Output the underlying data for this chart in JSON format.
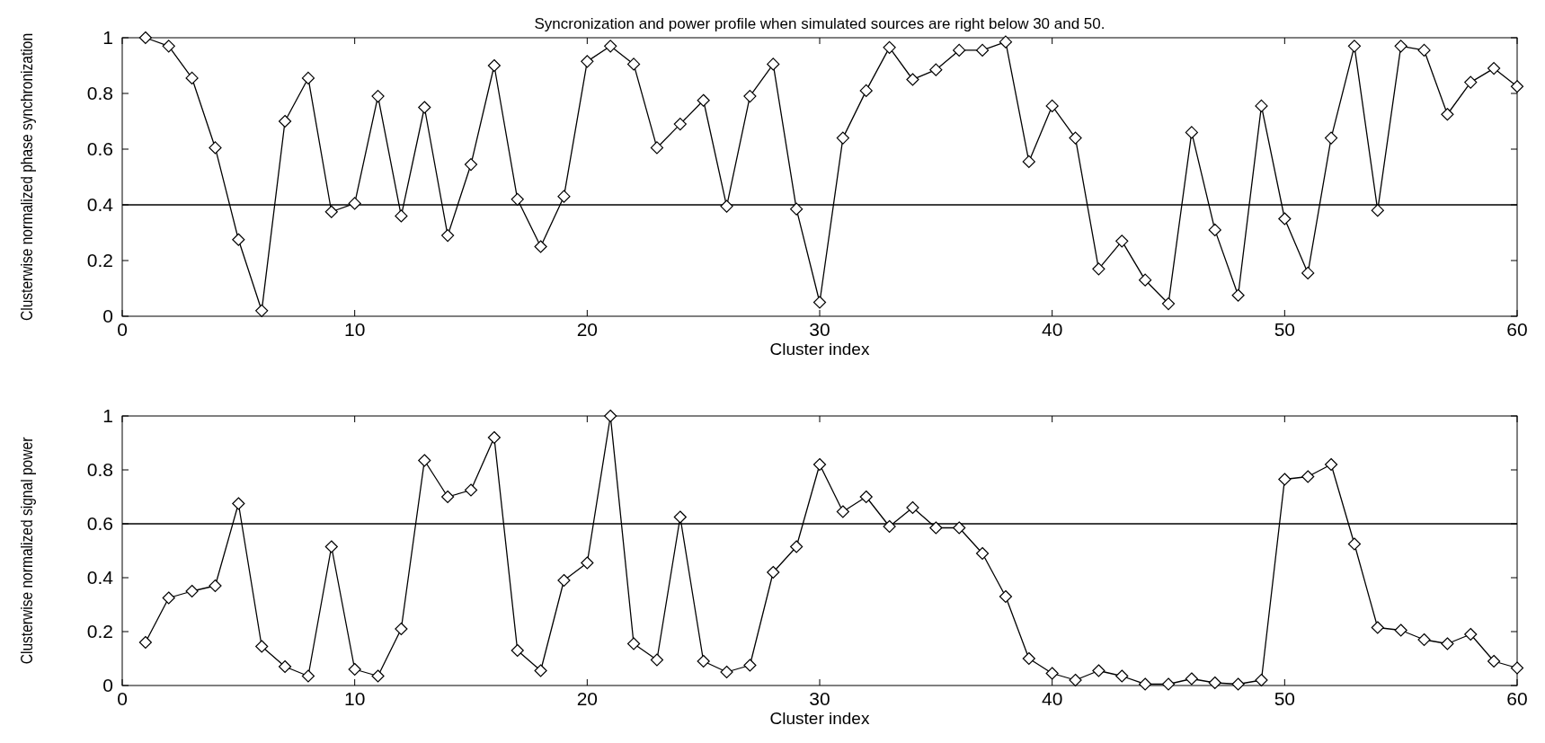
{
  "chart_data": [
    {
      "type": "line",
      "title": "Syncronization and power profile when simulated sources are right below 30 and 50.",
      "xlabel": "Cluster index",
      "ylabel": "Clusterwise normalized phase synchronization",
      "x": [
        1,
        2,
        3,
        4,
        5,
        6,
        7,
        8,
        9,
        10,
        11,
        12,
        13,
        14,
        15,
        16,
        17,
        18,
        19,
        20,
        21,
        22,
        23,
        24,
        25,
        26,
        27,
        28,
        29,
        30,
        31,
        32,
        33,
        34,
        35,
        36,
        37,
        38,
        39,
        40,
        41,
        42,
        43,
        44,
        45,
        46,
        47,
        48,
        49,
        50,
        51,
        52,
        53,
        54,
        55,
        56,
        57,
        58,
        59,
        60
      ],
      "series": [
        {
          "color": "#000000",
          "values": [
            1.0,
            0.97,
            0.855,
            0.605,
            0.275,
            0.02,
            0.7,
            0.855,
            0.375,
            0.405,
            0.79,
            0.36,
            0.75,
            0.29,
            0.545,
            0.9,
            0.42,
            0.25,
            0.43,
            0.915,
            0.97,
            0.905,
            0.605,
            0.69,
            0.775,
            0.395,
            0.79,
            0.905,
            0.385,
            0.05,
            0.64,
            0.81,
            0.965,
            0.85,
            0.885,
            0.955,
            0.955,
            0.985,
            0.555,
            0.755,
            0.64,
            0.17,
            0.27,
            0.13,
            0.045,
            0.66,
            0.31,
            0.075,
            0.755,
            0.35,
            0.155,
            0.64,
            0.97,
            0.38,
            0.97,
            0.955,
            0.725,
            0.84,
            0.89,
            0.825
          ]
        }
      ],
      "xlim": [
        0,
        60
      ],
      "xticks": [
        0,
        10,
        20,
        30,
        40,
        50,
        60
      ],
      "ylim": [
        0,
        1
      ],
      "yticks": [
        0,
        0.2,
        0.4,
        0.6,
        0.8,
        1
      ],
      "ref_lines": [
        {
          "axis": "y",
          "value": 0.4,
          "color": "#000000"
        }
      ],
      "marker": "diamond",
      "line_style": "solid"
    },
    {
      "type": "line",
      "xlabel": "Cluster index",
      "ylabel": "Clusterwise normalized signal power",
      "x": [
        1,
        2,
        3,
        4,
        5,
        6,
        7,
        8,
        9,
        10,
        11,
        12,
        13,
        14,
        15,
        16,
        17,
        18,
        19,
        20,
        21,
        22,
        23,
        24,
        25,
        26,
        27,
        28,
        29,
        30,
        31,
        32,
        33,
        34,
        35,
        36,
        37,
        38,
        39,
        40,
        41,
        42,
        43,
        44,
        45,
        46,
        47,
        48,
        49,
        50,
        51,
        52,
        53,
        54,
        55,
        56,
        57,
        58,
        59,
        60
      ],
      "series": [
        {
          "color": "#000000",
          "values": [
            0.16,
            0.325,
            0.35,
            0.37,
            0.675,
            0.145,
            0.07,
            0.035,
            0.515,
            0.06,
            0.035,
            0.21,
            0.835,
            0.7,
            0.725,
            0.92,
            0.13,
            0.055,
            0.39,
            0.455,
            1.0,
            0.155,
            0.095,
            0.625,
            0.09,
            0.05,
            0.075,
            0.42,
            0.515,
            0.82,
            0.645,
            0.7,
            0.59,
            0.66,
            0.585,
            0.585,
            0.49,
            0.33,
            0.1,
            0.045,
            0.02,
            0.055,
            0.035,
            0.005,
            0.005,
            0.025,
            0.01,
            0.005,
            0.02,
            0.765,
            0.775,
            0.82,
            0.525,
            0.215,
            0.205,
            0.17,
            0.155,
            0.19,
            0.09,
            0.065
          ]
        }
      ],
      "xlim": [
        0,
        60
      ],
      "xticks": [
        0,
        10,
        20,
        30,
        40,
        50,
        60
      ],
      "ylim": [
        0,
        1
      ],
      "yticks": [
        0,
        0.2,
        0.4,
        0.6,
        0.8,
        1
      ],
      "ref_lines": [
        {
          "axis": "y",
          "value": 0.6,
          "color": "#000000"
        }
      ],
      "marker": "diamond",
      "line_style": "solid"
    }
  ]
}
